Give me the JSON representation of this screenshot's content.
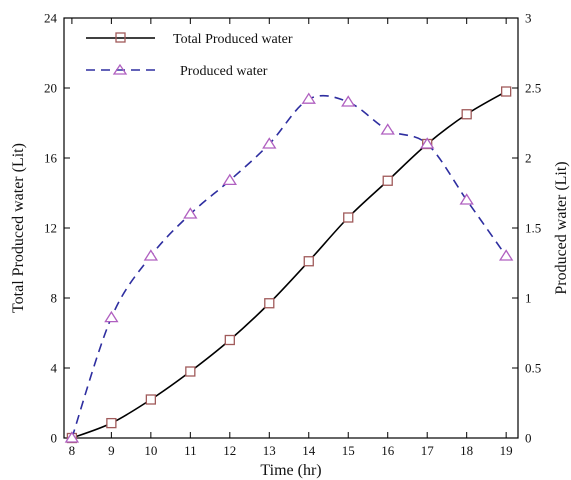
{
  "chart_data": {
    "type": "line",
    "xlabel": "Time (hr)",
    "ylabel_left": "Total Produced water (Lit)",
    "ylabel_right": "Produced water (Lit)",
    "x_ticks": [
      "8",
      "9",
      "10",
      "11",
      "12",
      "13",
      "14",
      "15",
      "16",
      "17",
      "18",
      "19"
    ],
    "y_left_ticks": [
      "0",
      "4",
      "8",
      "12",
      "16",
      "20",
      "24"
    ],
    "y_right_ticks": [
      "0",
      "0.5",
      "1",
      "1.5",
      "2",
      "2.5",
      "3"
    ],
    "xlim": [
      7.8,
      19.3
    ],
    "ylim_left": [
      0,
      24
    ],
    "ylim_right": [
      0,
      3
    ],
    "grid": false,
    "legend_position": "top-left",
    "series": [
      {
        "name": "Total Produced water",
        "axis": "left",
        "line_style": "solid",
        "marker": "square",
        "color": "#000000",
        "marker_color": "#a05a5a",
        "x": [
          8,
          9,
          10,
          11,
          12,
          13,
          14,
          15,
          16,
          17,
          18,
          19
        ],
        "values": [
          0,
          0.85,
          2.2,
          3.8,
          5.6,
          7.7,
          10.1,
          12.6,
          14.7,
          16.8,
          18.5,
          19.8
        ]
      },
      {
        "name": "Produced water",
        "axis": "right",
        "line_style": "dashed",
        "marker": "triangle",
        "color": "#2e2ea0",
        "marker_color": "#b060c0",
        "x": [
          8,
          9,
          10,
          11,
          12,
          13,
          14,
          15,
          16,
          17,
          18,
          19
        ],
        "values": [
          0,
          0.86,
          1.3,
          1.6,
          1.84,
          2.1,
          2.42,
          2.4,
          2.2,
          2.1,
          1.7,
          1.3
        ]
      }
    ]
  }
}
